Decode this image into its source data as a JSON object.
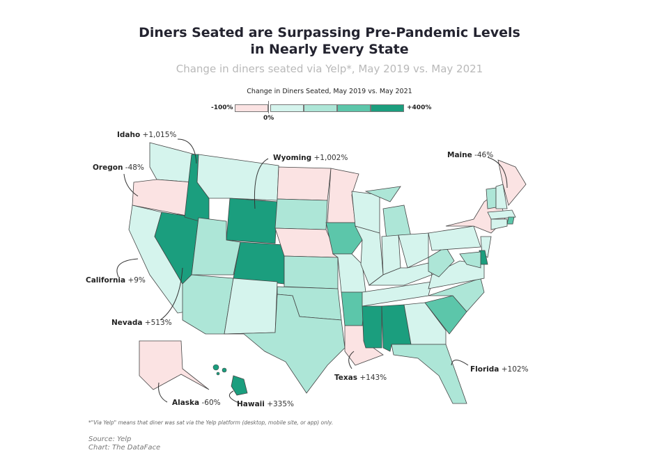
{
  "title_line1": "Diners Seated are Surpassing Pre-Pandemic Levels",
  "title_line2": "in Nearly Every State",
  "subtitle": "Change in diners seated via Yelp*, May 2019 vs. May 2021",
  "legend": {
    "title": "Change in Diners Seated, May 2019 vs. May 2021",
    "min": "-100%",
    "zero": "0%",
    "max": "+400%",
    "colors": [
      "#fbe3e3",
      "#d5f4ed",
      "#ade6d7",
      "#5cc6aa",
      "#1b9e7e"
    ]
  },
  "annotations": [
    {
      "state": "Idaho",
      "value": "+1,015%"
    },
    {
      "state": "Oregon",
      "value": "-48%"
    },
    {
      "state": "Wyoming",
      "value": "+1,002%"
    },
    {
      "state": "Maine",
      "value": "-46%"
    },
    {
      "state": "California",
      "value": "+9%"
    },
    {
      "state": "Nevada",
      "value": "+513%"
    },
    {
      "state": "Texas",
      "value": "+143%"
    },
    {
      "state": "Florida",
      "value": "+102%"
    },
    {
      "state": "Alaska",
      "value": "-60%"
    },
    {
      "state": "Hawaii",
      "value": "+335%"
    }
  ],
  "state_bins": {
    "WA": 1,
    "OR": 0,
    "CA": 1,
    "ID": 4,
    "NV": 4,
    "MT": 1,
    "WY": 4,
    "UT": 2,
    "AZ": 2,
    "CO": 4,
    "NM": 1,
    "ND": 0,
    "SD": 2,
    "NE": 0,
    "KS": 2,
    "OK": 2,
    "TX": 2,
    "MN": 0,
    "IA": 3,
    "MO": 1,
    "AR": 3,
    "LA": 0,
    "WI": 1,
    "IL": 1,
    "MI": 2,
    "MIU": 2,
    "IN": 1,
    "OH": 1,
    "KY": 1,
    "TN": 1,
    "MS": 4,
    "AL": 4,
    "GA": 1,
    "FL": 2,
    "SC": 3,
    "NC": 2,
    "VA": 1,
    "WV": 2,
    "PA": 1,
    "NY": 0,
    "VT": 2,
    "NH": 1,
    "ME": 0,
    "MA": 1,
    "RI": 3,
    "CT": 1,
    "NJ": 1,
    "DE": 4,
    "MD": 2,
    "AK": 0,
    "HI": 4
  },
  "footnote": "*\"Via Yelp\" means that diner was sat via the Yelp platform (desktop, mobile site, or app) only.",
  "source": "Source: Yelp",
  "credit": "Chart: The DataFace"
}
